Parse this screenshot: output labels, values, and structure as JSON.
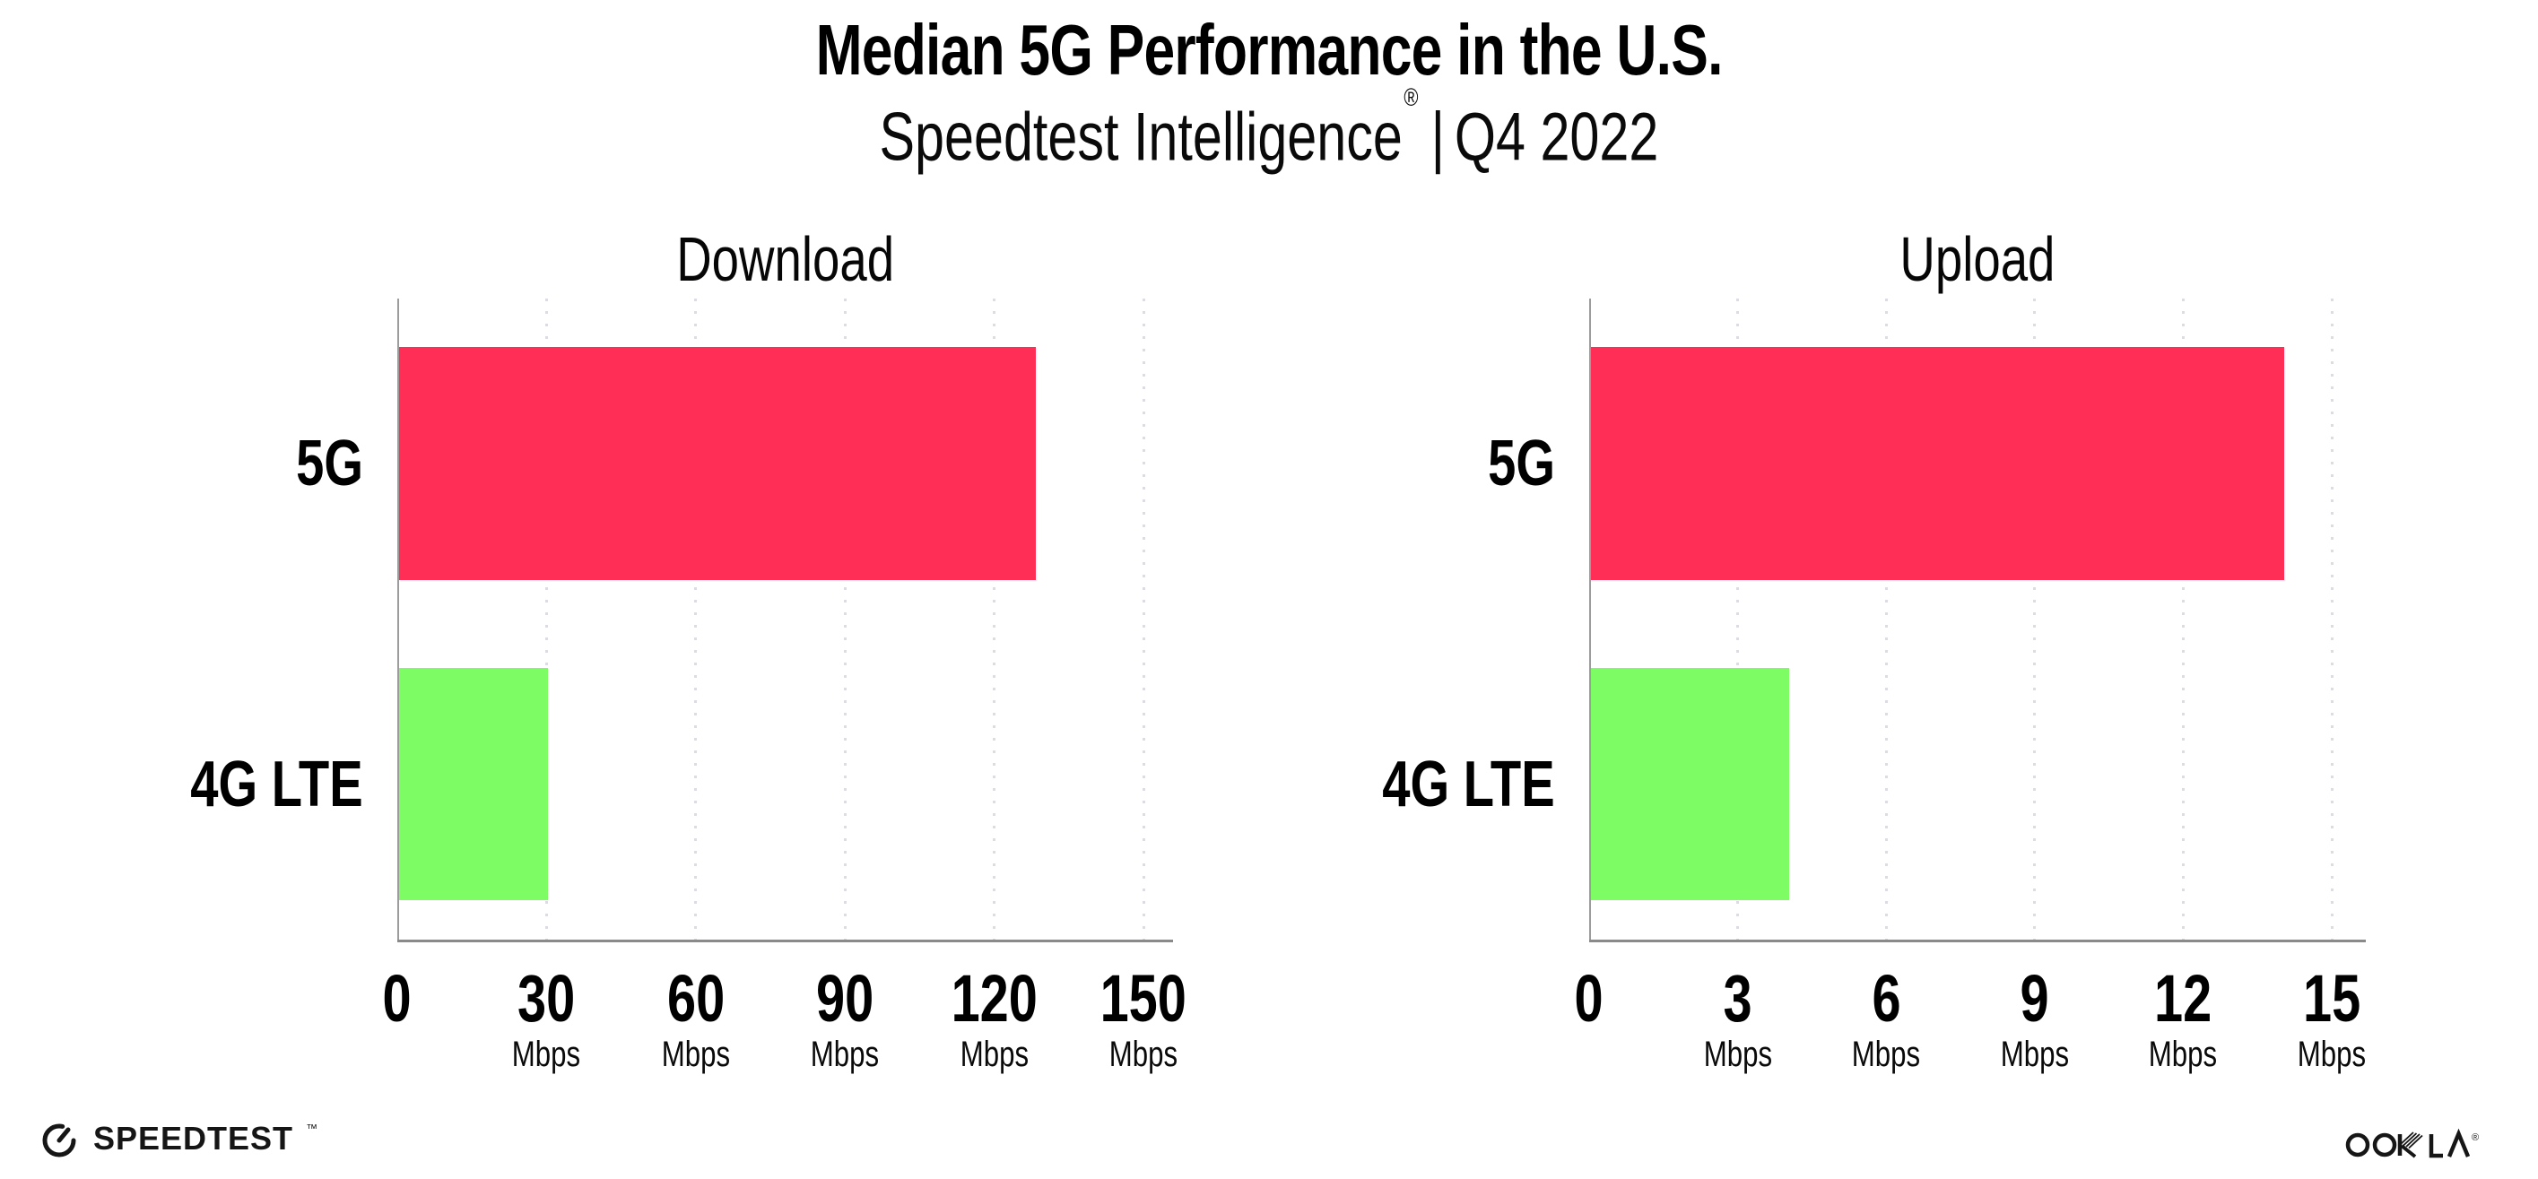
{
  "header": {
    "title": "Median 5G Performance in the U.S.",
    "subtitle_brand": "Speedtest Intelligence",
    "subtitle_reg": "®",
    "subtitle_sep": "|",
    "subtitle_period": "Q4 2022"
  },
  "chart_data": [
    {
      "type": "bar",
      "orientation": "horizontal",
      "title": "Download",
      "categories": [
        "5G",
        "4G LTE"
      ],
      "values": [
        128,
        30
      ],
      "unit": "Mbps",
      "xticks": [
        0,
        30,
        60,
        90,
        120,
        150
      ],
      "xlim": [
        0,
        156
      ],
      "grid": "dotted-vertical-at-ticks",
      "bar_colors": [
        "#FF2E56",
        "#7EFC63"
      ]
    },
    {
      "type": "bar",
      "orientation": "horizontal",
      "title": "Upload",
      "categories": [
        "5G",
        "4G LTE"
      ],
      "values": [
        14,
        4
      ],
      "unit": "Mbps",
      "xticks": [
        0,
        3,
        6,
        9,
        12,
        15
      ],
      "xlim": [
        0,
        15.7
      ],
      "grid": "dotted-vertical-at-ticks",
      "bar_colors": [
        "#FF2E56",
        "#7EFC63"
      ]
    }
  ],
  "colors": {
    "bar_5g": "#FF2E56",
    "bar_4g_lte": "#7EFC63",
    "x_axis_line": "#8A8A8A",
    "y_axis_line": "#9C9C9C",
    "gridline": "#DCDCE6",
    "text": "#000000"
  },
  "footer": {
    "speedtest_label": "SPEEDTEST",
    "speedtest_mark": "™",
    "ookla_label": "OOKLA",
    "ookla_reg": "®"
  }
}
